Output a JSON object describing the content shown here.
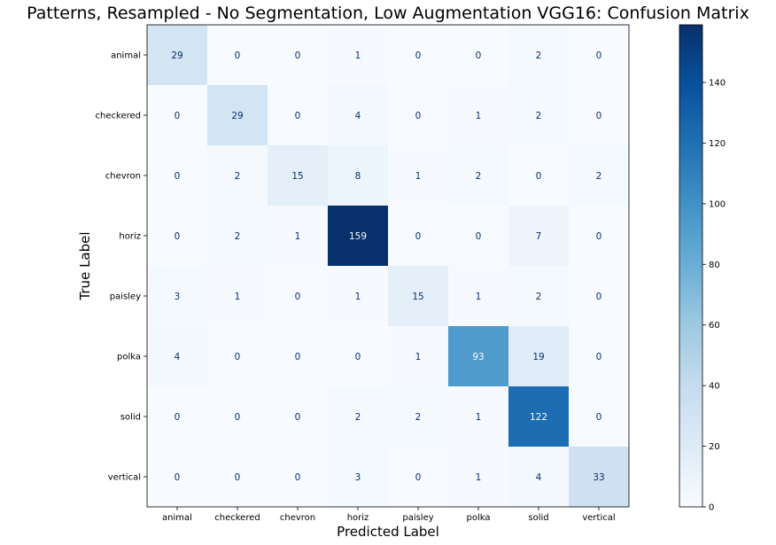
{
  "chart_data": {
    "type": "heatmap",
    "title": "Patterns, Resampled - No Segmentation, Low Augmentation VGG16: Confusion Matrix",
    "xlabel": "Predicted Label",
    "ylabel": "True Label",
    "x_categories": [
      "animal",
      "checkered",
      "chevron",
      "horiz",
      "paisley",
      "polka",
      "solid",
      "vertical"
    ],
    "y_categories": [
      "animal",
      "checkered",
      "chevron",
      "horiz",
      "paisley",
      "polka",
      "solid",
      "vertical"
    ],
    "values": [
      [
        29,
        0,
        0,
        1,
        0,
        0,
        2,
        0
      ],
      [
        0,
        29,
        0,
        4,
        0,
        1,
        2,
        0
      ],
      [
        0,
        2,
        15,
        8,
        1,
        2,
        0,
        2
      ],
      [
        0,
        2,
        1,
        159,
        0,
        0,
        7,
        0
      ],
      [
        3,
        1,
        0,
        1,
        15,
        1,
        2,
        0
      ],
      [
        4,
        0,
        0,
        0,
        1,
        93,
        19,
        0
      ],
      [
        0,
        0,
        0,
        2,
        2,
        1,
        122,
        0
      ],
      [
        0,
        0,
        0,
        3,
        0,
        1,
        4,
        33
      ]
    ],
    "colormap": "Blues",
    "colorbar": {
      "min": 0,
      "max": 159,
      "ticks": [
        0,
        20,
        40,
        60,
        80,
        100,
        120,
        140
      ]
    },
    "text_colors": {
      "dark": "#08306b",
      "light": "#f7fbff"
    }
  }
}
